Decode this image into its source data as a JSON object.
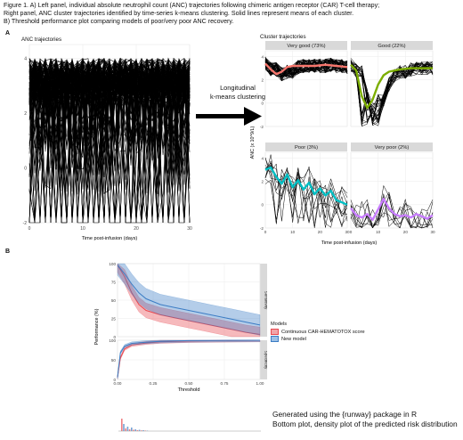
{
  "caption": {
    "line1": "Figure 1. A) Left panel, individual absolute neutrophil count (ANC) trajectories following chimeric antigen receptor (CAR) T-cell therapy;",
    "line2": "Right panel, ANC cluster trajectories identified by time-series k-means clustering. Solid lines represent means of each cluster.",
    "line3": "B) Threshold performance plot comparing models of poor/very poor ANC recovery."
  },
  "panel_a": {
    "letter": "A",
    "left_title": "ANC trajectories",
    "right_title": "Cluster trajectories",
    "arrow_label_1": "Longitudinal",
    "arrow_label_2": "k-means clustering"
  },
  "panel_b": {
    "letter": "B"
  },
  "footnote": {
    "line1": "Generated using the {runway} package in R",
    "line2": "Bottom plot, density plot of the predicted risk distribution"
  },
  "colors": {
    "very_good": "#f8766d",
    "good": "#7cae00",
    "poor": "#00bfc4",
    "very_poor": "#c77cff",
    "model_hematotox": "#e8474f",
    "model_new": "#3b7cc4",
    "strip_bg": "#d9d9d9",
    "grid": "#ebebeb"
  },
  "chart_data": [
    {
      "type": "line",
      "title": "ANC trajectories",
      "xlabel": "Time post-infusion (days)",
      "ylabel": "",
      "xlim": [
        0,
        30
      ],
      "ylim": [
        -2,
        4.5
      ],
      "x_ticks": [
        "0",
        "10",
        "20",
        "30"
      ],
      "y_ticks": [
        "-2",
        "0",
        "2",
        "4"
      ],
      "grid": true
    },
    {
      "type": "line",
      "title": "Cluster trajectories",
      "xlabel": "Time post-infusion (days)",
      "ylabel": "ANC (x 10^9/L)",
      "xlim": [
        0,
        30
      ],
      "ylim": [
        -2,
        4.5
      ],
      "x_ticks": [
        "0",
        "10",
        "20",
        "30"
      ],
      "y_ticks": [
        "-2",
        "0",
        "2",
        "4"
      ],
      "facets": [
        {
          "label": "Very good (73%)",
          "mean_x": [
            0,
            2,
            4,
            6,
            8,
            10,
            14,
            18,
            22,
            26,
            30
          ],
          "mean_y": [
            3.4,
            2.9,
            2.5,
            2.7,
            3.1,
            3.2,
            3.2,
            3.2,
            3.3,
            3.2,
            3.1
          ]
        },
        {
          "label": "Good (22%)",
          "mean_x": [
            0,
            2,
            4,
            6,
            8,
            10,
            12,
            14,
            18,
            22,
            26,
            30
          ],
          "mean_y": [
            3.3,
            2.8,
            0.6,
            -0.4,
            0.3,
            1.6,
            2.4,
            2.7,
            2.9,
            3.0,
            3.0,
            3.0
          ]
        },
        {
          "label": "Poor (3%)",
          "mean_x": [
            0,
            2,
            4,
            6,
            8,
            10,
            12,
            14,
            16,
            18,
            20,
            22,
            24,
            26,
            28,
            30
          ],
          "mean_y": [
            3.0,
            3.2,
            2.4,
            1.8,
            2.6,
            1.5,
            2.1,
            1.3,
            1.9,
            0.9,
            1.4,
            0.8,
            1.2,
            0.4,
            0.2,
            0.0
          ]
        },
        {
          "label": "Very poor (2%)",
          "mean_x": [
            0,
            2,
            4,
            6,
            8,
            10,
            12,
            14,
            16,
            18,
            20,
            22,
            24,
            26,
            28,
            30
          ],
          "mean_y": [
            -0.3,
            -0.9,
            -1.1,
            -0.8,
            -1.3,
            -0.4,
            0.5,
            -0.3,
            -0.8,
            -1.0,
            -0.9,
            -1.1,
            -0.8,
            -1.0,
            -1.2,
            -0.9
          ]
        }
      ]
    },
    {
      "type": "line",
      "xlabel": "Threshold",
      "ylabel": "Performance (%)",
      "xlim": [
        0,
        1
      ],
      "ylim": [
        0,
        100
      ],
      "x_ticks": [
        "0.00",
        "0.25",
        "0.50",
        "0.75",
        "1.00"
      ],
      "y_ticks": [
        "0",
        "25",
        "50",
        "75",
        "100"
      ],
      "legend_title": "Models",
      "legend_position": "right",
      "facets": [
        "Sensitivity",
        "Specificity"
      ],
      "series": [
        {
          "name": "Continuous CAR-HEMATOTOX score",
          "sensitivity_x": [
            0,
            0.05,
            0.1,
            0.15,
            0.2,
            0.3,
            0.4,
            0.5,
            0.6,
            0.7,
            0.8,
            0.9,
            1.0
          ],
          "sensitivity_y": [
            98,
            82,
            60,
            44,
            36,
            30,
            26,
            22,
            18,
            14,
            10,
            6,
            3
          ],
          "specificity_x": [
            0,
            0.02,
            0.05,
            0.1,
            0.2,
            0.3,
            0.5,
            0.7,
            1.0
          ],
          "specificity_y": [
            5,
            55,
            78,
            88,
            93,
            96,
            98,
            99,
            100
          ]
        },
        {
          "name": "New model",
          "sensitivity_x": [
            0,
            0.05,
            0.1,
            0.15,
            0.2,
            0.3,
            0.4,
            0.5,
            0.6,
            0.7,
            0.8,
            0.9,
            1.0
          ],
          "sensitivity_y": [
            98,
            86,
            72,
            60,
            52,
            44,
            40,
            36,
            32,
            28,
            24,
            20,
            16
          ],
          "specificity_x": [
            0,
            0.02,
            0.05,
            0.1,
            0.2,
            0.3,
            0.5,
            0.7,
            1.0
          ],
          "specificity_y": [
            5,
            68,
            85,
            92,
            95,
            97,
            99,
            99.5,
            100
          ]
        }
      ]
    }
  ]
}
